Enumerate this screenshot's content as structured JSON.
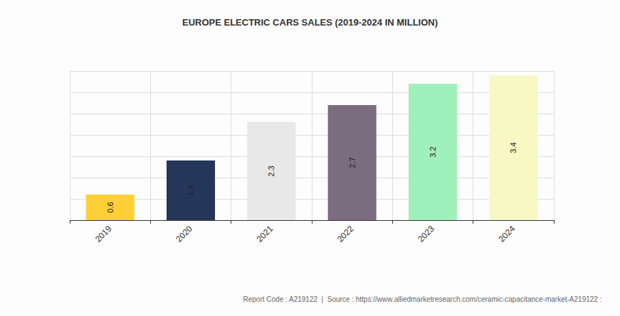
{
  "chart_data": {
    "type": "bar",
    "title": "EUROPE ELECTRIC CARS SALES (2019-2024 IN MILLION)",
    "source": "Report Code : A219122  |  Source : https://www.alliedmarketresearch.com/ceramic-capacitance-market-A219122 :",
    "categories": [
      "2019",
      "2020",
      "2021",
      "2022",
      "2023",
      "2024"
    ],
    "values": [
      0.6,
      1.4,
      2.3,
      2.7,
      3.2,
      3.4
    ],
    "colors": [
      "#ffd035",
      "#24365a",
      "#e8e8e8",
      "#7b6c80",
      "#a0f0bc",
      "#f8f8c4"
    ],
    "ylim": [
      0,
      3.5
    ],
    "yticks": [
      0,
      0.5,
      1,
      1.5,
      2,
      2.5,
      3,
      3.5
    ],
    "grid": true,
    "data_labels": true,
    "tick_labels": "x"
  }
}
